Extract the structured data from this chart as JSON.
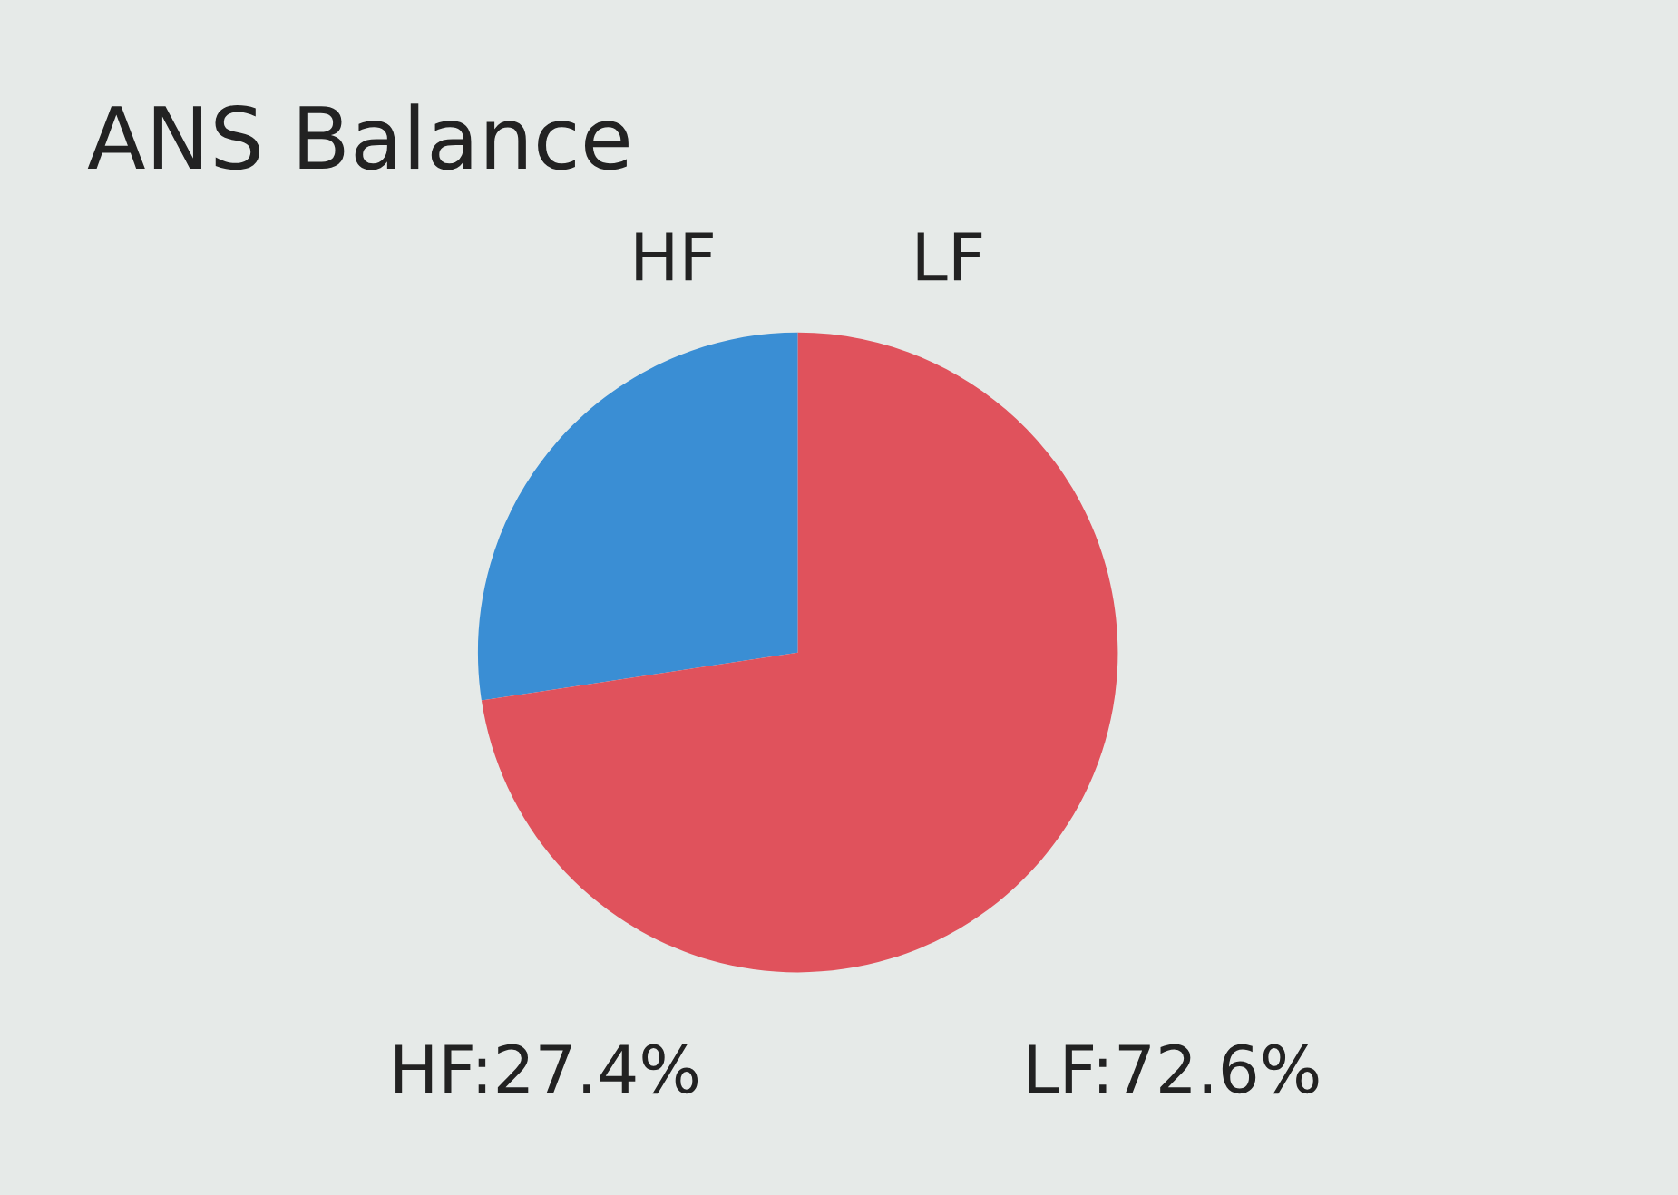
{
  "chart_data": {
    "type": "pie",
    "title": "ANS Balance",
    "categories": [
      "HF",
      "LF"
    ],
    "values": [
      27.4,
      72.6
    ],
    "colors": [
      "#3a8ed4",
      "#e0525c"
    ],
    "annotations": [
      "HF:27.4%",
      "LF:72.6%"
    ],
    "legend": false
  }
}
